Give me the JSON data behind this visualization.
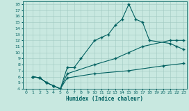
{
  "xlabel": "Humidex (Indice chaleur)",
  "xlim": [
    -0.5,
    23.5
  ],
  "ylim": [
    4,
    18.5
  ],
  "yticks": [
    4,
    5,
    6,
    7,
    8,
    9,
    10,
    11,
    12,
    13,
    14,
    15,
    16,
    17,
    18
  ],
  "xticks": [
    0,
    1,
    2,
    3,
    4,
    5,
    6,
    7,
    8,
    9,
    10,
    11,
    12,
    13,
    14,
    15,
    16,
    17,
    18,
    19,
    20,
    21,
    22,
    23
  ],
  "bg_color": "#c8e8e0",
  "grid_color": "#a0c8c0",
  "line_color": "#006060",
  "line1_x": [
    1,
    2,
    3,
    4,
    5,
    6,
    7,
    8,
    10,
    11,
    12,
    13,
    14,
    15,
    16,
    17,
    18,
    21,
    22,
    23
  ],
  "line1_y": [
    6.0,
    5.8,
    5.0,
    4.5,
    4.0,
    7.5,
    7.5,
    9.0,
    12.0,
    12.5,
    13.0,
    14.5,
    15.5,
    18.0,
    15.5,
    15.0,
    12.0,
    11.5,
    11.0,
    10.5
  ],
  "line2_x": [
    1,
    2,
    3,
    4,
    5,
    6,
    10,
    13,
    15,
    17,
    21,
    22,
    23
  ],
  "line2_y": [
    6.0,
    5.8,
    5.0,
    4.5,
    4.0,
    6.5,
    8.0,
    9.0,
    10.0,
    11.0,
    12.0,
    12.0,
    12.0
  ],
  "line3_x": [
    1,
    2,
    3,
    4,
    5,
    6,
    10,
    15,
    20,
    23
  ],
  "line3_y": [
    6.0,
    5.8,
    5.0,
    4.5,
    4.0,
    5.8,
    6.5,
    7.0,
    7.8,
    8.2
  ]
}
